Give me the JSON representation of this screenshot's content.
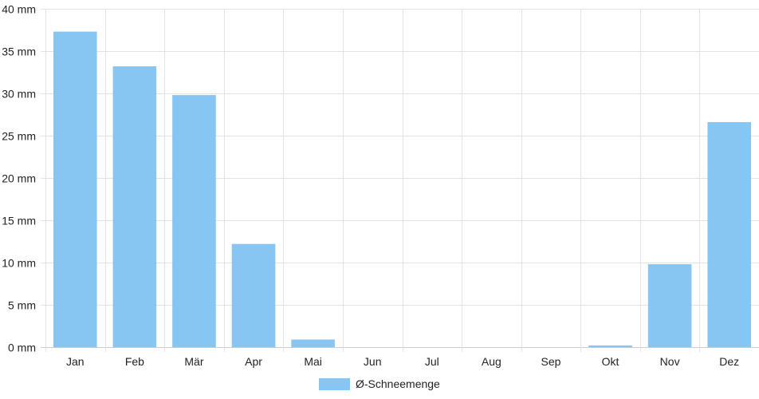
{
  "chart_data": {
    "type": "bar",
    "categories": [
      "Jan",
      "Feb",
      "Mär",
      "Apr",
      "Mai",
      "Jun",
      "Jul",
      "Aug",
      "Sep",
      "Okt",
      "Nov",
      "Dez"
    ],
    "series": [
      {
        "name": "Ø-Schneemenge",
        "values": [
          37.3,
          33.2,
          29.8,
          12.2,
          0.9,
          0,
          0,
          0,
          0,
          0.2,
          9.8,
          26.6
        ],
        "color": "#87C5F2"
      }
    ],
    "y_ticks": [
      "0 mm",
      "5 mm",
      "10 mm",
      "15 mm",
      "20 mm",
      "25 mm",
      "30 mm",
      "35 mm",
      "40 mm"
    ],
    "ylim": [
      0,
      40
    ],
    "grid": true,
    "legend_position": "bottom-center"
  }
}
